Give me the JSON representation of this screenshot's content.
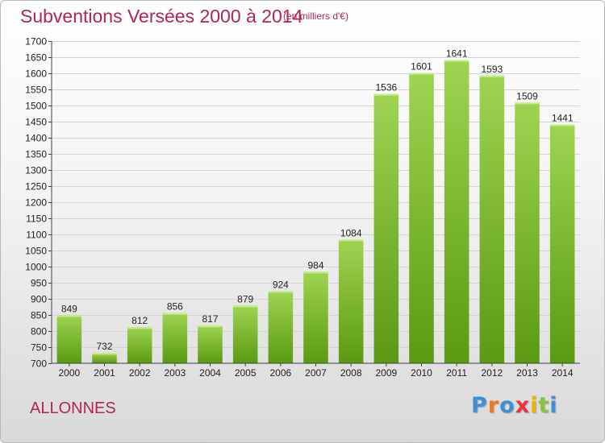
{
  "page": {
    "title": "Subventions Versées 2000 à 2014",
    "unit": "(en milliers d'€)",
    "commune": "ALLONNES",
    "brand": "Proxiti"
  },
  "colors": {
    "title": "#b0245a",
    "bar_top": "#9fd452",
    "bar_bottom": "#5a9a12",
    "brand_letters": [
      "#3e8fd8",
      "#f07820",
      "#3e8fd8",
      "#e8343a",
      "#f0b400",
      "#8ac43a",
      "#3e8fd8"
    ]
  },
  "chart_data": {
    "type": "bar",
    "title": "Subventions Versées 2000 à 2014",
    "subtitle": "(en milliers d'€)",
    "categories": [
      "2000",
      "2001",
      "2002",
      "2003",
      "2004",
      "2005",
      "2006",
      "2007",
      "2008",
      "2009",
      "2010",
      "2011",
      "2012",
      "2013",
      "2014"
    ],
    "values": [
      849,
      732,
      812,
      856,
      817,
      879,
      924,
      984,
      1084,
      1536,
      1601,
      1641,
      1593,
      1509,
      1441
    ],
    "ylim": [
      700,
      1700
    ],
    "ytick_step": 50,
    "grid": "horizontal",
    "data_labels": true
  }
}
